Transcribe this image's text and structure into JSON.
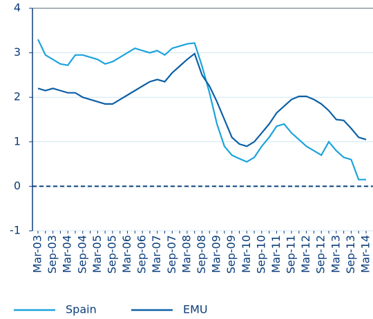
{
  "chart_data": {
    "type": "line",
    "categories": [
      "Mar-03",
      null,
      "Sep-03",
      null,
      "Mar-04",
      null,
      "Sep-04",
      null,
      "Mar-05",
      null,
      "Sep-05",
      null,
      "Mar-06",
      null,
      "Sep-06",
      null,
      "Mar-07",
      null,
      "Sep-07",
      null,
      "Mar-08",
      null,
      "Sep-08",
      null,
      "Mar-09",
      null,
      "Sep-09",
      null,
      "Mar-10",
      null,
      "Sep-10",
      null,
      "Mar-11",
      null,
      "Sep-11",
      null,
      "Mar-12",
      null,
      "Sep-12",
      null,
      "Mar-13",
      null,
      "Sep-13",
      null,
      "Mar-14"
    ],
    "series": [
      {
        "name": "Spain",
        "color": "#1ba3dc",
        "values": [
          3.3,
          2.95,
          2.85,
          2.75,
          2.72,
          2.95,
          2.95,
          2.9,
          2.85,
          2.75,
          2.8,
          2.9,
          3.0,
          3.1,
          3.05,
          3.0,
          3.05,
          2.95,
          3.1,
          3.15,
          3.2,
          3.22,
          2.7,
          2.1,
          1.4,
          0.9,
          0.7,
          0.62,
          0.55,
          0.65,
          0.9,
          1.1,
          1.35,
          1.4,
          1.2,
          1.05,
          0.9,
          0.8,
          0.7,
          1.0,
          0.8,
          0.65,
          0.6,
          0.15,
          0.15
        ]
      },
      {
        "name": "EMU",
        "color": "#0b5fa5",
        "values": [
          2.2,
          2.15,
          2.2,
          2.15,
          2.1,
          2.1,
          2.0,
          1.95,
          1.9,
          1.85,
          1.85,
          1.95,
          2.05,
          2.15,
          2.25,
          2.35,
          2.4,
          2.35,
          2.55,
          2.7,
          2.85,
          2.98,
          2.5,
          2.25,
          1.9,
          1.5,
          1.1,
          0.95,
          0.9,
          1.0,
          1.2,
          1.4,
          1.65,
          1.8,
          1.95,
          2.02,
          2.02,
          1.95,
          1.85,
          1.7,
          1.5,
          1.48,
          1.3,
          1.1,
          1.05
        ]
      }
    ],
    "ylim": [
      -1,
      4
    ],
    "yticks": [
      -1,
      0,
      1,
      2,
      3,
      4
    ],
    "grid": true,
    "reference_line": 0,
    "legend": "bottom"
  }
}
